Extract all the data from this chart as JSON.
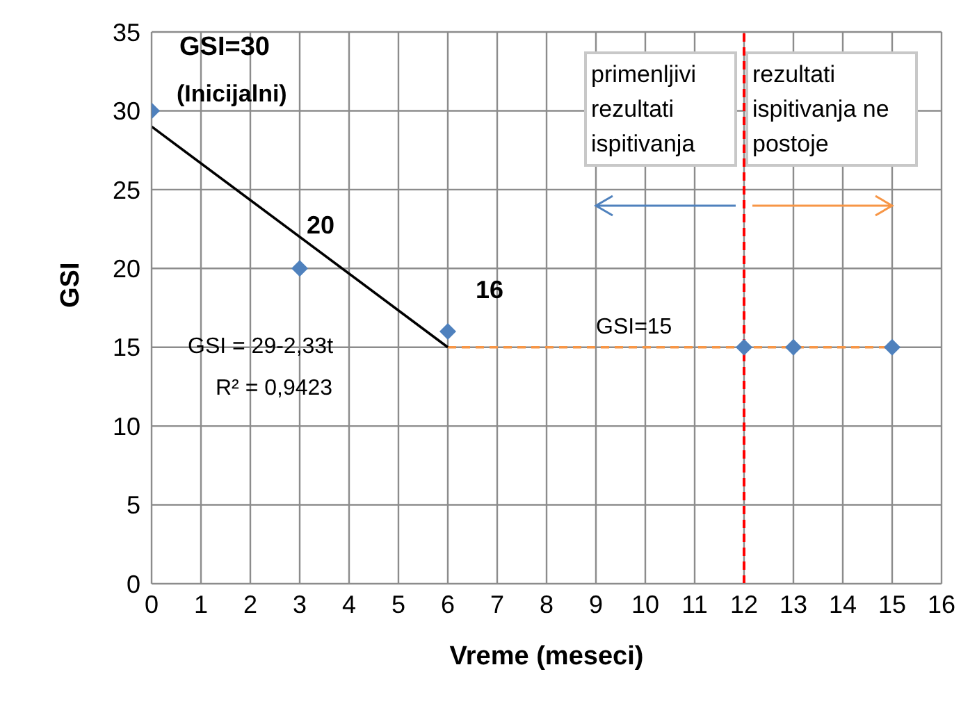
{
  "chart_data": {
    "type": "scatter",
    "xlabel": "Vreme (meseci)",
    "ylabel": "GSI",
    "xlim": [
      0,
      16
    ],
    "xticks": [
      0,
      1,
      2,
      3,
      4,
      5,
      6,
      7,
      8,
      9,
      10,
      11,
      12,
      13,
      14,
      15,
      16
    ],
    "ylim": [
      0,
      35
    ],
    "yticks": [
      0,
      5,
      10,
      15,
      20,
      25,
      30,
      35
    ],
    "grid": true,
    "series": [
      {
        "type": "line",
        "color": "#f79646",
        "x": [
          6,
          15
        ],
        "values": [
          15,
          15
        ],
        "line_style": "dashed"
      },
      {
        "type": "line",
        "color": "#000000",
        "x": [
          0,
          6
        ],
        "values": [
          29,
          15
        ],
        "line_style": "solid"
      },
      {
        "color": "#4f81bd",
        "x": [
          0,
          3,
          6,
          12,
          13,
          15
        ],
        "values": [
          30,
          20,
          16,
          15,
          15,
          15
        ],
        "marker": "diamond"
      }
    ],
    "ref_lines": [
      {
        "axis": "x",
        "value": 12,
        "color": "#ff0000",
        "line_style": "dashed"
      }
    ],
    "annotations": [
      {
        "text": "GSI=30",
        "x": 0,
        "y": 30
      },
      "(Inicijalni)",
      {
        "text": "20",
        "x": 3,
        "y": 20
      },
      {
        "text": "16",
        "x": 6,
        "y": 16
      },
      "GSI = 29-2,33t",
      "R² = 0,9423",
      {
        "text": "GSI=15",
        "x": 9,
        "y": 15
      },
      "primenljivi rezultati ispitivanja",
      "rezultati ispitivanja ne postoje"
    ]
  }
}
